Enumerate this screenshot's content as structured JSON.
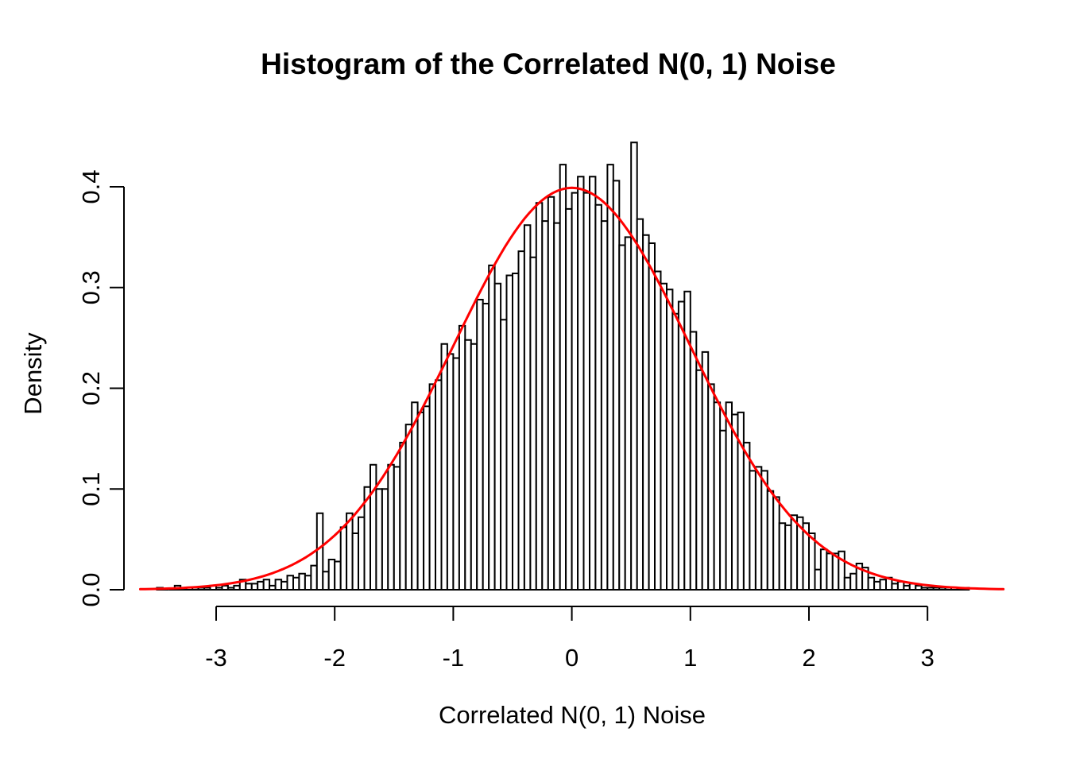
{
  "title": "Histogram of the Correlated N(0, 1) Noise",
  "chart_data": {
    "type": "bar",
    "subtype": "histogram",
    "title": "Histogram of the Correlated N(0, 1) Noise",
    "xlabel": "Correlated N(0, 1) Noise",
    "ylabel": "Density",
    "xlim": [
      -3.7,
      3.7
    ],
    "ylim": [
      0,
      0.445
    ],
    "grid": false,
    "legend": "none",
    "x_ticks": [
      -3,
      -2,
      -1,
      0,
      1,
      2,
      3
    ],
    "x_tick_labels": [
      "-3",
      "-2",
      "-1",
      "0",
      "1",
      "2",
      "3"
    ],
    "y_ticks": [
      0.0,
      0.1,
      0.2,
      0.3,
      0.4
    ],
    "y_tick_labels": [
      "0.0",
      "0.1",
      "0.2",
      "0.3",
      "0.4"
    ],
    "bin_start": -3.5,
    "bin_width": 0.05,
    "densities": [
      0.002,
      0,
      0,
      0.004,
      0,
      0.002,
      0.002,
      0.002,
      0.002,
      0.004,
      0.002,
      0.004,
      0.002,
      0.004,
      0.01,
      0.006,
      0.006,
      0.008,
      0.01,
      0.004,
      0.01,
      0.008,
      0.014,
      0.012,
      0.016,
      0.014,
      0.024,
      0.076,
      0.018,
      0.03,
      0.028,
      0.062,
      0.076,
      0.056,
      0.072,
      0.102,
      0.124,
      0.1,
      0.1,
      0.124,
      0.122,
      0.146,
      0.164,
      0.186,
      0.176,
      0.182,
      0.204,
      0.208,
      0.244,
      0.234,
      0.23,
      0.262,
      0.248,
      0.244,
      0.288,
      0.284,
      0.322,
      0.304,
      0.268,
      0.312,
      0.314,
      0.336,
      0.362,
      0.33,
      0.384,
      0.366,
      0.39,
      0.364,
      0.422,
      0.378,
      0.394,
      0.41,
      0.394,
      0.41,
      0.382,
      0.366,
      0.422,
      0.406,
      0.342,
      0.35,
      0.444,
      0.368,
      0.352,
      0.344,
      0.316,
      0.304,
      0.298,
      0.274,
      0.286,
      0.296,
      0.256,
      0.218,
      0.236,
      0.204,
      0.186,
      0.158,
      0.186,
      0.174,
      0.176,
      0.146,
      0.118,
      0.122,
      0.118,
      0.098,
      0.092,
      0.066,
      0.064,
      0.074,
      0.072,
      0.066,
      0.056,
      0.02,
      0.04,
      0.036,
      0.036,
      0.038,
      0.012,
      0.016,
      0.026,
      0.022,
      0.012,
      0.008,
      0.01,
      0.012,
      0.006,
      0.008,
      0.004,
      0.006,
      0.004,
      0.002,
      0.002,
      0.002,
      0.002,
      0.002,
      0.002,
      0.002,
      0.002
    ],
    "overlay_curve": {
      "name": "normal-density",
      "mean": 0,
      "sd": 1,
      "x_range": [
        -3.64,
        3.64
      ],
      "color": "#FF0000"
    },
    "colors": {
      "background": "#FFFFFF",
      "bar_fill": "#FFFFFF",
      "bar_stroke": "#000000",
      "axis": "#000000",
      "text": "#000000",
      "curve": "#FF0000"
    }
  }
}
